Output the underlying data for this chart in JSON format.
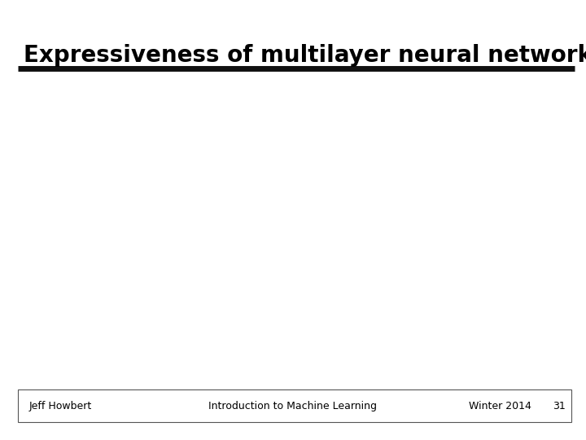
{
  "title": "Expressiveness of multilayer neural networks",
  "footer_left": "Jeff Howbert",
  "footer_center": "Introduction to Machine Learning",
  "footer_right": "Winter 2014",
  "footer_page": "31",
  "bg_color": "#ffffff",
  "title_fontsize": 20,
  "footer_fontsize": 9,
  "title_color": "#000000",
  "footer_color": "#000000",
  "divider_color": "#111111",
  "footer_box_color": "#555555"
}
